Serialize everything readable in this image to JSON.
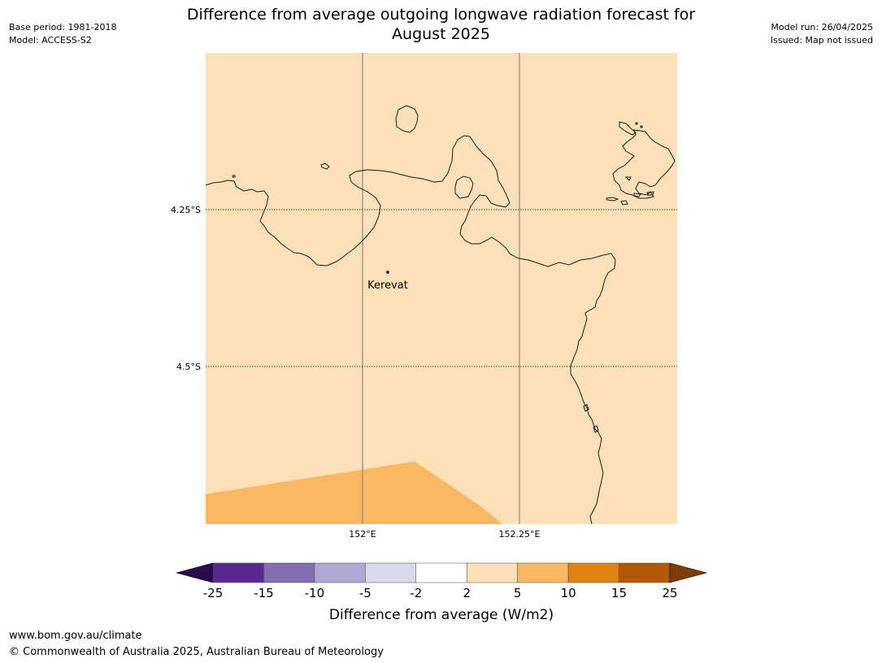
{
  "title_line1": "Difference from average outgoing longwave radiation forecast for",
  "title_line2": "August 2025",
  "meta_left": {
    "base_period": "Base period: 1981-2018",
    "model": "Model: ACCESS-S2"
  },
  "meta_right": {
    "model_run": "Model run: 26/04/2025",
    "issued": "Issued: Map not issued"
  },
  "map": {
    "lon_ticks": [
      "152°E",
      "152.25°E"
    ],
    "lat_ticks": [
      "4.25°S",
      "4.5°S"
    ],
    "place_label": "Kerevat",
    "background_color": "#fce0b8",
    "lower_band_color": "#fab862"
  },
  "colorbar": {
    "label": "Difference from average (W/m2)",
    "ticks": [
      "-25",
      "-15",
      "-10",
      "-5",
      "-2",
      "2",
      "5",
      "10",
      "15",
      "25"
    ],
    "colors": [
      "#2d0a4e",
      "#5a2990",
      "#8170b0",
      "#b0a8d4",
      "#d9d9eb",
      "#ffffff",
      "#fce0b8",
      "#fab862",
      "#e08214",
      "#b35806",
      "#7f3b08"
    ]
  },
  "footer": {
    "url": "www.bom.gov.au/climate",
    "copyright": "© Commonwealth of Australia 2025, Australian Bureau of Meteorology"
  }
}
